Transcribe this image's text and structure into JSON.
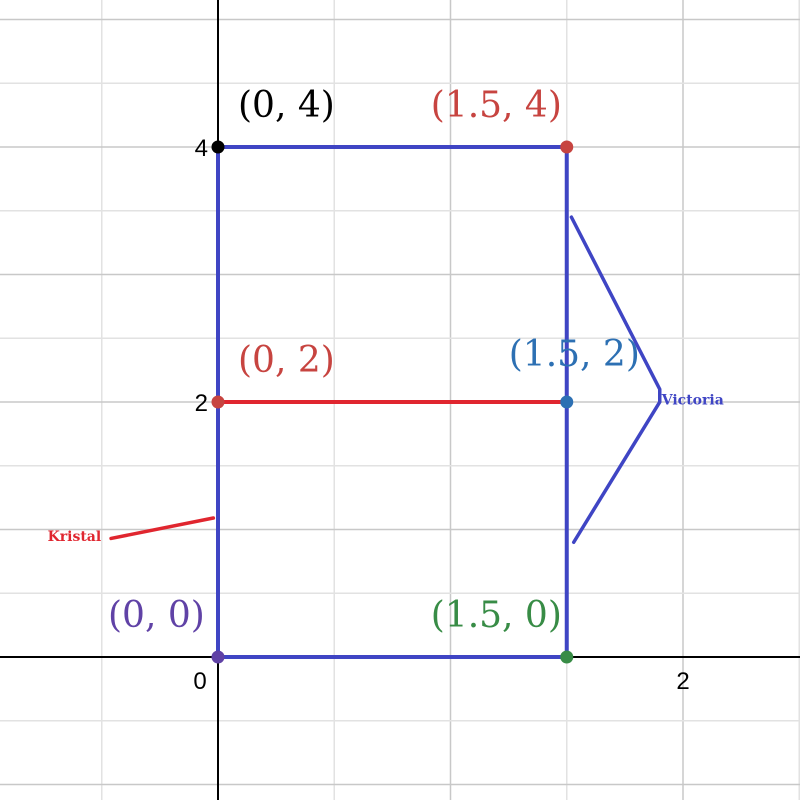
{
  "chart_data": {
    "type": "scatter",
    "title": "",
    "xlabel": "",
    "ylabel": "",
    "xlim": [
      -0.94,
      2.5
    ],
    "ylim": [
      -1.12,
      5.15
    ],
    "grid": true,
    "grid_step": 0.5,
    "x_ticks": [
      {
        "value": 0,
        "label": "0"
      },
      {
        "value": 2,
        "label": "2"
      }
    ],
    "y_ticks": [
      {
        "value": 2,
        "label": "2"
      },
      {
        "value": 4,
        "label": "4"
      }
    ],
    "points": [
      {
        "x": 0,
        "y": 4,
        "label": "(0, 4)",
        "color": "#000000"
      },
      {
        "x": 1.5,
        "y": 4,
        "label": "(1.5, 4)",
        "color": "#c74440"
      },
      {
        "x": 0,
        "y": 2,
        "label": "(0, 2)",
        "color": "#c74440"
      },
      {
        "x": 1.5,
        "y": 2,
        "label": "(1.5, 2)",
        "color": "#2d70b3"
      },
      {
        "x": 0,
        "y": 0,
        "label": "(0, 0)",
        "color": "#6042a6"
      },
      {
        "x": 1.5,
        "y": 0,
        "label": "(1.5, 0)",
        "color": "#388c46"
      }
    ],
    "segments": [
      {
        "from": [
          0,
          0
        ],
        "to": [
          0,
          4
        ],
        "color": "#3f45c4"
      },
      {
        "from": [
          0,
          4
        ],
        "to": [
          1.5,
          4
        ],
        "color": "#3f45c4"
      },
      {
        "from": [
          1.5,
          4
        ],
        "to": [
          1.5,
          0
        ],
        "color": "#3f45c4"
      },
      {
        "from": [
          1.5,
          0
        ],
        "to": [
          0,
          0
        ],
        "color": "#3f45c4"
      },
      {
        "from": [
          0,
          2
        ],
        "to": [
          1.5,
          2
        ],
        "color": "#e0262f"
      }
    ],
    "annotations": [
      {
        "text": "Kristal",
        "color": "#e0262f",
        "at": [
          -0.72,
          0.95
        ],
        "pointer": [
          [
            -0.46,
            0.93
          ],
          [
            -0.02,
            1.09
          ]
        ]
      },
      {
        "text": "Victoria",
        "color": "#3f45c4",
        "at": [
          1.9,
          2.02
        ],
        "pointer": [
          [
            1.52,
            3.45
          ],
          [
            1.9,
            2.1
          ],
          [
            1.9,
            2.0
          ],
          [
            1.53,
            0.9
          ]
        ]
      }
    ]
  }
}
